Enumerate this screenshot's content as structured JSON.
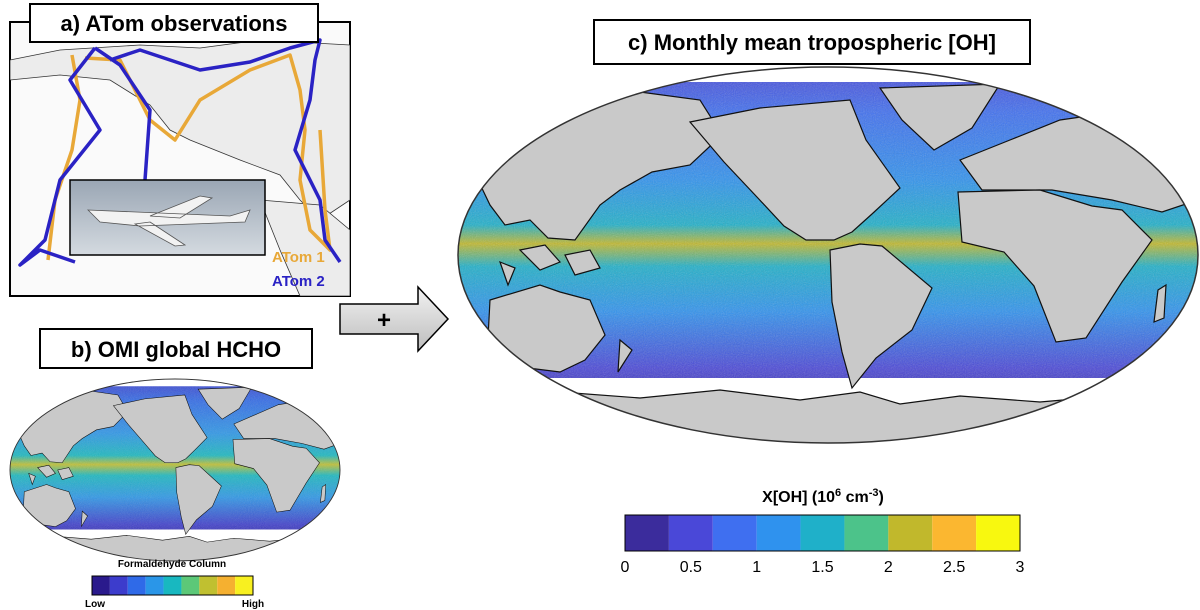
{
  "panel_a": {
    "title": "a) ATom observations",
    "legend": [
      {
        "name": "ATom 1",
        "color": "#e8a838"
      },
      {
        "name": "ATom 2",
        "color": "#2a22c4"
      }
    ]
  },
  "arrow": {
    "label": "+"
  },
  "panel_b": {
    "title": "b) OMI global HCHO",
    "colorbar": {
      "title": "Formaldehyde Column",
      "low_label": "Low",
      "high_label": "High",
      "colors": [
        "#2a1a8c",
        "#3c3ccc",
        "#2f6ae8",
        "#2a96e8",
        "#18b8c0",
        "#5cc878",
        "#c0c030",
        "#f5b030",
        "#f8f020"
      ]
    }
  },
  "panel_c": {
    "title": "c) Monthly mean tropospheric [OH]",
    "colorbar": {
      "title_parts": [
        "X[OH] (10",
        "6",
        " cm",
        "-3",
        ")"
      ],
      "lim": [
        0,
        3
      ],
      "ticks": [
        0,
        0.5,
        1,
        1.5,
        2,
        2.5,
        3
      ],
      "colors": [
        "#3b2c9c",
        "#4a48d8",
        "#3f6ff0",
        "#2f92ee",
        "#1fb0c9",
        "#4cc38a",
        "#c1b82c",
        "#fbb730",
        "#f8f80f"
      ]
    }
  }
}
